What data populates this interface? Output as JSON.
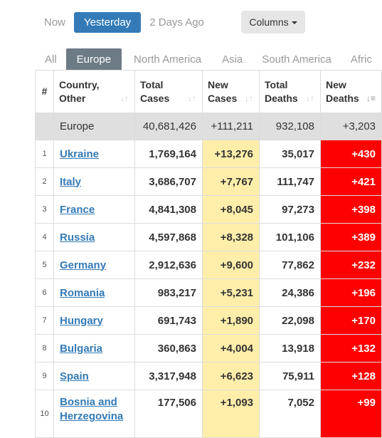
{
  "date_tabs": [
    {
      "label": "Now",
      "active": false
    },
    {
      "label": "Yesterday",
      "active": true
    },
    {
      "label": "2 Days Ago",
      "active": false
    }
  ],
  "columns_button": "Columns",
  "region_tabs": [
    "All",
    "Europe",
    "North America",
    "Asia",
    "South America",
    "Afric"
  ],
  "active_region": "Europe",
  "headers": {
    "num": "#",
    "country": [
      "Country,",
      "Other"
    ],
    "total_cases": [
      "Total",
      "Cases"
    ],
    "new_cases": [
      "New",
      "Cases"
    ],
    "total_deaths": [
      "Total",
      "Deaths"
    ],
    "new_deaths": [
      "New",
      "Deaths"
    ]
  },
  "sort_icons": {
    "inactive": "sort-icon",
    "active": "sort-desc-icon"
  },
  "total_row": {
    "country": "Europe",
    "total_cases": "40,681,426",
    "new_cases": "+111,211",
    "total_deaths": "932,108",
    "new_deaths": "+3,203"
  },
  "rows": [
    {
      "idx": "1",
      "country": "Ukraine",
      "total_cases": "1,769,164",
      "new_cases": "+13,276",
      "total_deaths": "35,017",
      "new_deaths": "+430"
    },
    {
      "idx": "2",
      "country": "Italy",
      "total_cases": "3,686,707",
      "new_cases": "+7,767",
      "total_deaths": "111,747",
      "new_deaths": "+421"
    },
    {
      "idx": "3",
      "country": "France",
      "total_cases": "4,841,308",
      "new_cases": "+8,045",
      "total_deaths": "97,273",
      "new_deaths": "+398"
    },
    {
      "idx": "4",
      "country": "Russia",
      "total_cases": "4,597,868",
      "new_cases": "+8,328",
      "total_deaths": "101,106",
      "new_deaths": "+389"
    },
    {
      "idx": "5",
      "country": "Germany",
      "total_cases": "2,912,636",
      "new_cases": "+9,600",
      "total_deaths": "77,862",
      "new_deaths": "+232"
    },
    {
      "idx": "6",
      "country": "Romania",
      "total_cases": "983,217",
      "new_cases": "+5,231",
      "total_deaths": "24,386",
      "new_deaths": "+196"
    },
    {
      "idx": "7",
      "country": "Hungary",
      "total_cases": "691,743",
      "new_cases": "+1,890",
      "total_deaths": "22,098",
      "new_deaths": "+170"
    },
    {
      "idx": "8",
      "country": "Bulgaria",
      "total_cases": "360,863",
      "new_cases": "+4,004",
      "total_deaths": "13,918",
      "new_deaths": "+132"
    },
    {
      "idx": "9",
      "country": "Spain",
      "total_cases": "3,317,948",
      "new_cases": "+6,623",
      "total_deaths": "75,911",
      "new_deaths": "+128"
    },
    {
      "idx": "10",
      "country": "Bosnia and Herzegovina",
      "total_cases": "177,506",
      "new_cases": "+1,093",
      "total_deaths": "7,052",
      "new_deaths": "+99"
    }
  ],
  "colors": {
    "active_pill": "#337ab7",
    "active_tab": "#6d7b85",
    "link": "#337ab7",
    "new_cases_bg": "#ffeeaa",
    "new_deaths_bg": "#ff0000",
    "total_row_bg": "#dfdfdf"
  }
}
